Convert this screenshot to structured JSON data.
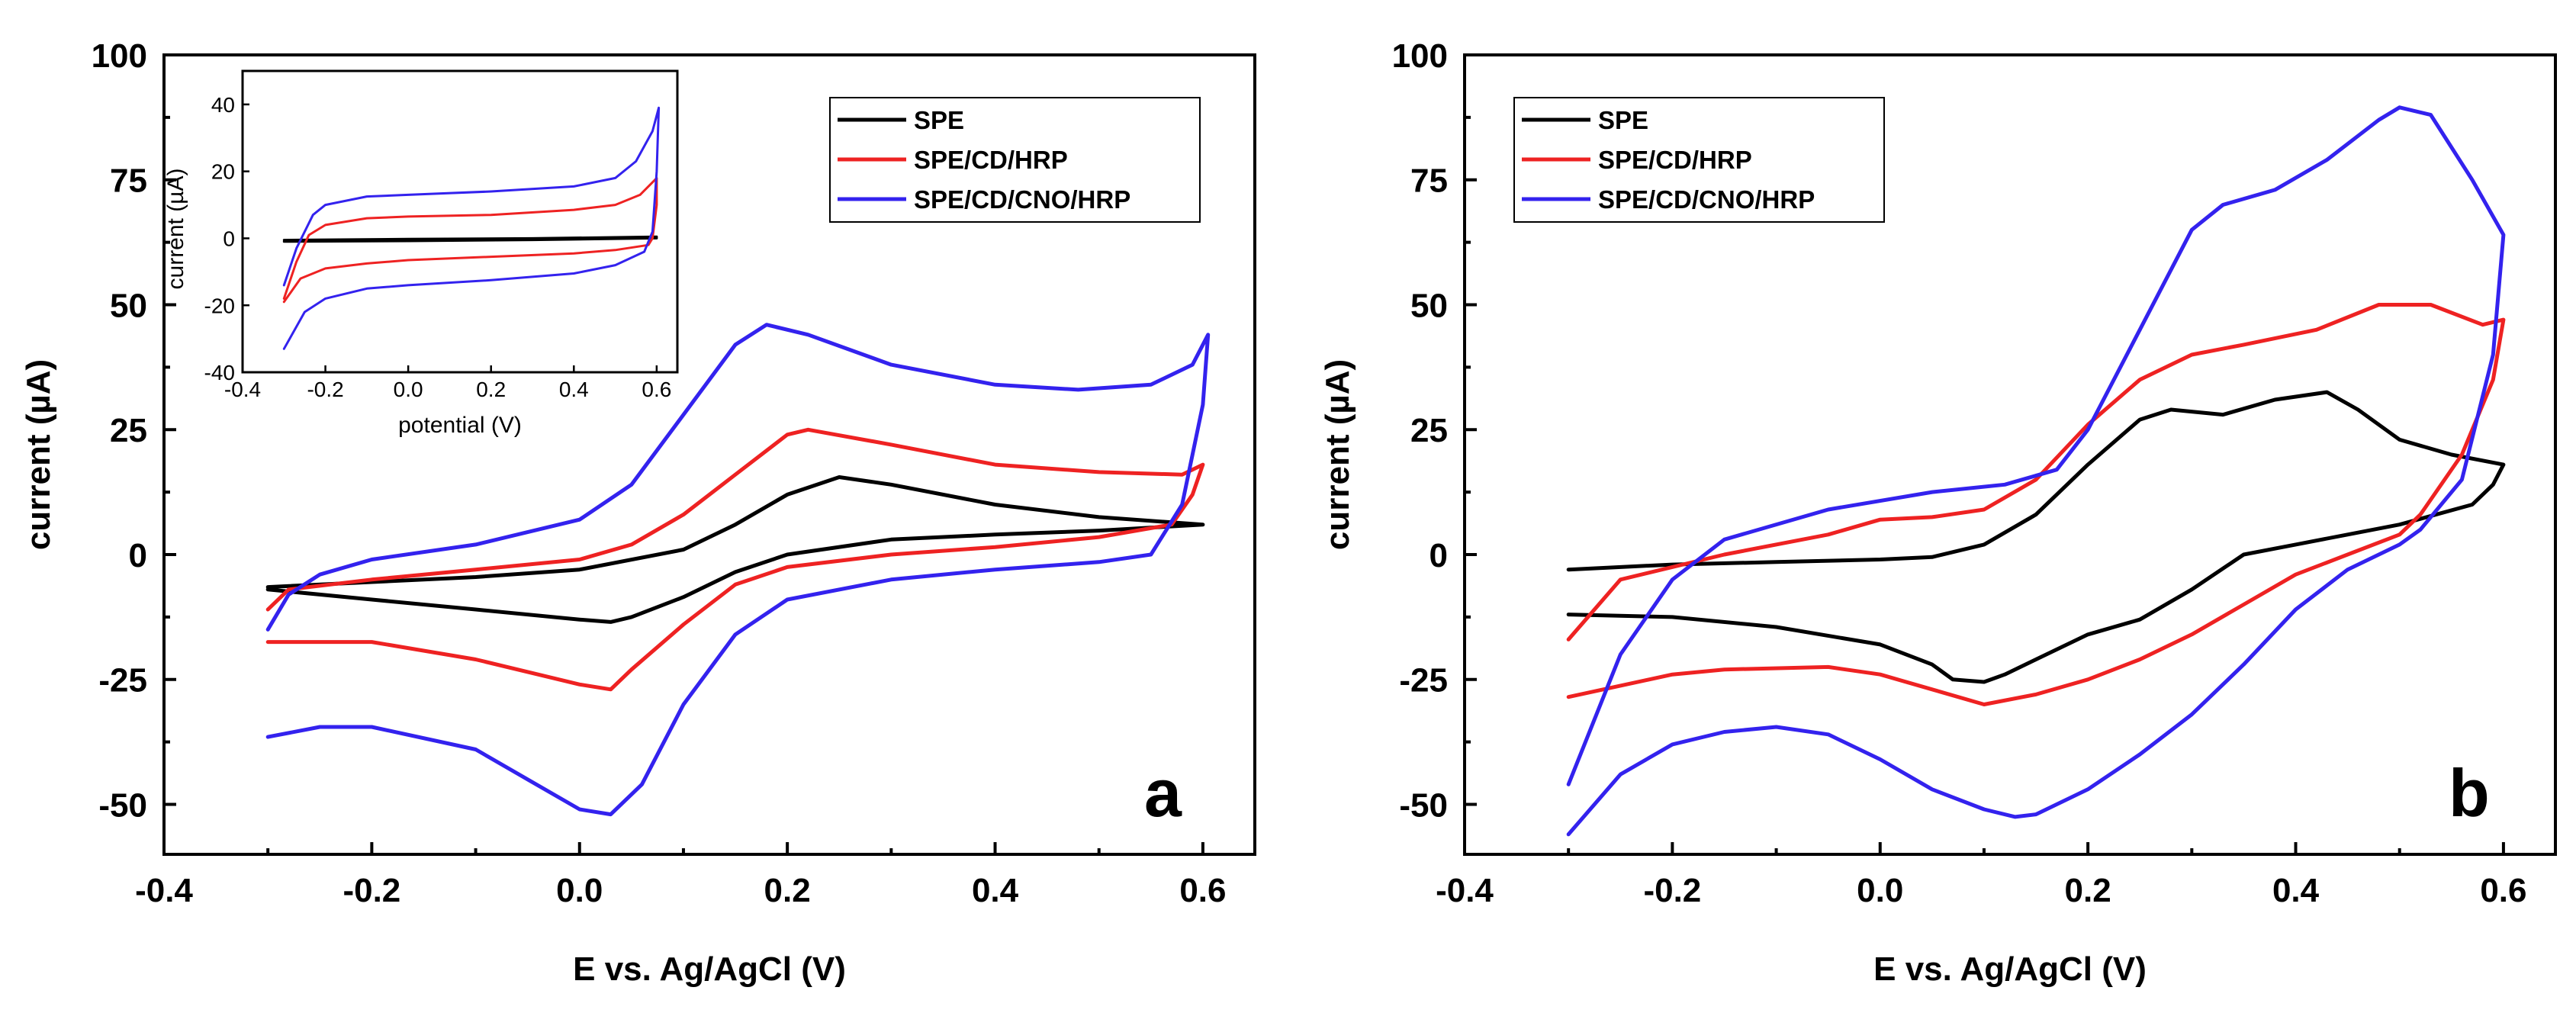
{
  "colors": {
    "SPE": "#000000",
    "SPE/CD/HRP": "#ee2222",
    "SPE/CD/CNO/HRP": "#3322ee"
  },
  "chart_data": [
    {
      "type": "line",
      "panel_label": "a",
      "xlabel": "E vs. Ag/AgCl (V)",
      "ylabel": "current (µA)",
      "xlim": [
        -0.4,
        0.65
      ],
      "ylim": [
        -60,
        100
      ],
      "x_ticks": [
        "-0.4",
        "-0.2",
        "0.0",
        "0.2",
        "0.4",
        "0.6"
      ],
      "y_ticks": [
        "-50",
        "-25",
        "0",
        "25",
        "50",
        "75",
        "100"
      ],
      "legend": [
        "SPE",
        "SPE/CD/HRP",
        "SPE/CD/CNO/HRP"
      ],
      "legend_position": "top-right",
      "series": [
        {
          "name": "SPE",
          "points": [
            [
              -0.3,
              -6.5
            ],
            [
              -0.2,
              -5.5
            ],
            [
              -0.1,
              -4.5
            ],
            [
              0.0,
              -3
            ],
            [
              0.1,
              1
            ],
            [
              0.15,
              6
            ],
            [
              0.2,
              12
            ],
            [
              0.25,
              15.5
            ],
            [
              0.3,
              14
            ],
            [
              0.4,
              10
            ],
            [
              0.5,
              7.5
            ],
            [
              0.6,
              6
            ],
            [
              0.5,
              4.8
            ],
            [
              0.4,
              4
            ],
            [
              0.3,
              3
            ],
            [
              0.2,
              0
            ],
            [
              0.15,
              -3.5
            ],
            [
              0.1,
              -8.5
            ],
            [
              0.05,
              -12.5
            ],
            [
              0.03,
              -13.5
            ],
            [
              0.0,
              -13
            ],
            [
              -0.1,
              -11
            ],
            [
              -0.2,
              -9
            ],
            [
              -0.3,
              -7
            ]
          ]
        },
        {
          "name": "SPE/CD/HRP",
          "points": [
            [
              -0.3,
              -11
            ],
            [
              -0.28,
              -7
            ],
            [
              -0.2,
              -5
            ],
            [
              -0.1,
              -3
            ],
            [
              0.0,
              -1
            ],
            [
              0.05,
              2
            ],
            [
              0.1,
              8
            ],
            [
              0.15,
              16
            ],
            [
              0.2,
              24
            ],
            [
              0.22,
              25
            ],
            [
              0.3,
              22
            ],
            [
              0.4,
              18
            ],
            [
              0.5,
              16.5
            ],
            [
              0.58,
              16
            ],
            [
              0.6,
              18
            ],
            [
              0.59,
              12
            ],
            [
              0.57,
              6
            ],
            [
              0.5,
              3.5
            ],
            [
              0.4,
              1.5
            ],
            [
              0.3,
              0
            ],
            [
              0.2,
              -2.5
            ],
            [
              0.15,
              -6
            ],
            [
              0.1,
              -14
            ],
            [
              0.05,
              -23
            ],
            [
              0.03,
              -27
            ],
            [
              0.0,
              -26
            ],
            [
              -0.1,
              -21
            ],
            [
              -0.2,
              -17.5
            ],
            [
              -0.3,
              -17.5
            ]
          ]
        },
        {
          "name": "SPE/CD/CNO/HRP",
          "points": [
            [
              -0.3,
              -15
            ],
            [
              -0.28,
              -8
            ],
            [
              -0.25,
              -4
            ],
            [
              -0.2,
              -1
            ],
            [
              -0.1,
              2
            ],
            [
              0.0,
              7
            ],
            [
              0.05,
              14
            ],
            [
              0.1,
              28
            ],
            [
              0.15,
              42
            ],
            [
              0.18,
              46
            ],
            [
              0.22,
              44
            ],
            [
              0.3,
              38
            ],
            [
              0.4,
              34
            ],
            [
              0.48,
              33
            ],
            [
              0.55,
              34
            ],
            [
              0.59,
              38
            ],
            [
              0.605,
              44
            ],
            [
              0.6,
              30
            ],
            [
              0.58,
              10
            ],
            [
              0.55,
              0
            ],
            [
              0.5,
              -1.5
            ],
            [
              0.4,
              -3
            ],
            [
              0.3,
              -5
            ],
            [
              0.2,
              -9
            ],
            [
              0.15,
              -16
            ],
            [
              0.1,
              -30
            ],
            [
              0.06,
              -46
            ],
            [
              0.03,
              -52
            ],
            [
              0.0,
              -51
            ],
            [
              -0.05,
              -45
            ],
            [
              -0.1,
              -39
            ],
            [
              -0.2,
              -34.5
            ],
            [
              -0.25,
              -34.5
            ],
            [
              -0.3,
              -36.5
            ]
          ]
        }
      ]
    },
    {
      "type": "line",
      "panel_label": "b",
      "xlabel": "E vs. Ag/AgCl (V)",
      "ylabel": "current (µA)",
      "xlim": [
        -0.4,
        0.65
      ],
      "ylim": [
        -60,
        100
      ],
      "x_ticks": [
        "-0.4",
        "-0.2",
        "0.0",
        "0.2",
        "0.4",
        "0.6"
      ],
      "y_ticks": [
        "-50",
        "-25",
        "0",
        "25",
        "50",
        "75",
        "100"
      ],
      "legend": [
        "SPE",
        "SPE/CD/HRP",
        "SPE/CD/CNO/HRP"
      ],
      "legend_position": "top-left",
      "series": [
        {
          "name": "SPE",
          "points": [
            [
              -0.3,
              -3
            ],
            [
              -0.2,
              -2
            ],
            [
              -0.1,
              -1.5
            ],
            [
              0.0,
              -1
            ],
            [
              0.05,
              -0.5
            ],
            [
              0.1,
              2
            ],
            [
              0.15,
              8
            ],
            [
              0.2,
              18
            ],
            [
              0.25,
              27
            ],
            [
              0.28,
              29
            ],
            [
              0.33,
              28
            ],
            [
              0.38,
              31
            ],
            [
              0.43,
              32.5
            ],
            [
              0.46,
              29
            ],
            [
              0.5,
              23
            ],
            [
              0.55,
              20
            ],
            [
              0.6,
              18
            ],
            [
              0.59,
              14
            ],
            [
              0.57,
              10
            ],
            [
              0.5,
              6
            ],
            [
              0.45,
              4
            ],
            [
              0.4,
              2
            ],
            [
              0.35,
              0
            ],
            [
              0.3,
              -7
            ],
            [
              0.25,
              -13
            ],
            [
              0.2,
              -16
            ],
            [
              0.15,
              -21
            ],
            [
              0.12,
              -24
            ],
            [
              0.1,
              -25.5
            ],
            [
              0.07,
              -25
            ],
            [
              0.05,
              -22
            ],
            [
              0.0,
              -18
            ],
            [
              -0.1,
              -14.5
            ],
            [
              -0.2,
              -12.5
            ],
            [
              -0.3,
              -12
            ]
          ]
        },
        {
          "name": "SPE/CD/HRP",
          "points": [
            [
              -0.3,
              -17
            ],
            [
              -0.25,
              -5
            ],
            [
              -0.15,
              0
            ],
            [
              -0.05,
              4
            ],
            [
              0.0,
              7
            ],
            [
              0.05,
              7.5
            ],
            [
              0.1,
              9
            ],
            [
              0.15,
              15
            ],
            [
              0.2,
              26
            ],
            [
              0.25,
              35
            ],
            [
              0.3,
              40
            ],
            [
              0.35,
              42
            ],
            [
              0.42,
              45
            ],
            [
              0.48,
              50
            ],
            [
              0.53,
              50
            ],
            [
              0.58,
              46
            ],
            [
              0.6,
              47
            ],
            [
              0.59,
              35
            ],
            [
              0.56,
              20
            ],
            [
              0.52,
              8
            ],
            [
              0.5,
              4
            ],
            [
              0.45,
              0
            ],
            [
              0.4,
              -4
            ],
            [
              0.35,
              -10
            ],
            [
              0.3,
              -16
            ],
            [
              0.25,
              -21
            ],
            [
              0.2,
              -25
            ],
            [
              0.15,
              -28
            ],
            [
              0.1,
              -30
            ],
            [
              0.05,
              -27
            ],
            [
              0.0,
              -24
            ],
            [
              -0.05,
              -22.5
            ],
            [
              -0.15,
              -23
            ],
            [
              -0.2,
              -24
            ],
            [
              -0.3,
              -28.5
            ]
          ]
        },
        {
          "name": "SPE/CD/CNO/HRP",
          "points": [
            [
              -0.3,
              -46
            ],
            [
              -0.25,
              -20
            ],
            [
              -0.2,
              -5
            ],
            [
              -0.15,
              3
            ],
            [
              -0.05,
              9
            ],
            [
              0.05,
              12.5
            ],
            [
              0.12,
              14
            ],
            [
              0.17,
              17
            ],
            [
              0.2,
              25
            ],
            [
              0.25,
              45
            ],
            [
              0.3,
              65
            ],
            [
              0.33,
              70
            ],
            [
              0.38,
              73
            ],
            [
              0.43,
              79
            ],
            [
              0.48,
              87
            ],
            [
              0.5,
              89.5
            ],
            [
              0.53,
              88
            ],
            [
              0.57,
              75
            ],
            [
              0.6,
              64
            ],
            [
              0.59,
              40
            ],
            [
              0.56,
              15
            ],
            [
              0.52,
              5
            ],
            [
              0.5,
              2
            ],
            [
              0.45,
              -3
            ],
            [
              0.4,
              -11
            ],
            [
              0.35,
              -22
            ],
            [
              0.3,
              -32
            ],
            [
              0.25,
              -40
            ],
            [
              0.2,
              -47
            ],
            [
              0.15,
              -52
            ],
            [
              0.13,
              -52.5
            ],
            [
              0.1,
              -51
            ],
            [
              0.05,
              -47
            ],
            [
              0.0,
              -41
            ],
            [
              -0.05,
              -36
            ],
            [
              -0.1,
              -34.5
            ],
            [
              -0.15,
              -35.5
            ],
            [
              -0.2,
              -38
            ],
            [
              -0.25,
              -44
            ],
            [
              -0.3,
              -56
            ]
          ]
        }
      ],
      "inset": null
    }
  ],
  "inset": {
    "type": "line",
    "xlabel": "potential (V)",
    "ylabel": "current (µA)",
    "xlim": [
      -0.4,
      0.65
    ],
    "ylim": [
      -40,
      50
    ],
    "x_ticks": [
      "-0.4",
      "-0.2",
      "0.0",
      "0.2",
      "0.4",
      "0.6"
    ],
    "y_ticks": [
      "-40",
      "-20",
      "0",
      "20",
      "40"
    ],
    "series": [
      {
        "name": "SPE",
        "points": [
          [
            -0.3,
            -0.5
          ],
          [
            0.0,
            -0.2
          ],
          [
            0.3,
            0
          ],
          [
            0.6,
            0.5
          ],
          [
            0.6,
            0
          ],
          [
            0.3,
            -0.5
          ],
          [
            0.0,
            -0.8
          ],
          [
            -0.3,
            -1
          ]
        ]
      },
      {
        "name": "SPE/CD/HRP",
        "points": [
          [
            -0.3,
            -18
          ],
          [
            -0.27,
            -7
          ],
          [
            -0.24,
            1
          ],
          [
            -0.2,
            4
          ],
          [
            -0.1,
            6
          ],
          [
            0.0,
            6.5
          ],
          [
            0.2,
            7
          ],
          [
            0.4,
            8.5
          ],
          [
            0.5,
            10
          ],
          [
            0.56,
            13
          ],
          [
            0.6,
            18
          ],
          [
            0.6,
            10
          ],
          [
            0.59,
            0
          ],
          [
            0.58,
            -2
          ],
          [
            0.5,
            -3.5
          ],
          [
            0.4,
            -4.5
          ],
          [
            0.2,
            -5.5
          ],
          [
            0.0,
            -6.5
          ],
          [
            -0.1,
            -7.5
          ],
          [
            -0.2,
            -9
          ],
          [
            -0.26,
            -12
          ],
          [
            -0.3,
            -19
          ]
        ]
      },
      {
        "name": "SPE/CD/CNO/HRP",
        "points": [
          [
            -0.3,
            -14
          ],
          [
            -0.27,
            -3
          ],
          [
            -0.23,
            7
          ],
          [
            -0.2,
            10
          ],
          [
            -0.1,
            12.5
          ],
          [
            0.0,
            13
          ],
          [
            0.2,
            14
          ],
          [
            0.4,
            15.5
          ],
          [
            0.5,
            18
          ],
          [
            0.55,
            23
          ],
          [
            0.59,
            32
          ],
          [
            0.605,
            39
          ],
          [
            0.6,
            20
          ],
          [
            0.59,
            2
          ],
          [
            0.57,
            -4
          ],
          [
            0.5,
            -8
          ],
          [
            0.4,
            -10.5
          ],
          [
            0.2,
            -12.5
          ],
          [
            0.0,
            -14
          ],
          [
            -0.1,
            -15
          ],
          [
            -0.2,
            -18
          ],
          [
            -0.25,
            -22
          ],
          [
            -0.3,
            -33
          ]
        ]
      }
    ]
  }
}
